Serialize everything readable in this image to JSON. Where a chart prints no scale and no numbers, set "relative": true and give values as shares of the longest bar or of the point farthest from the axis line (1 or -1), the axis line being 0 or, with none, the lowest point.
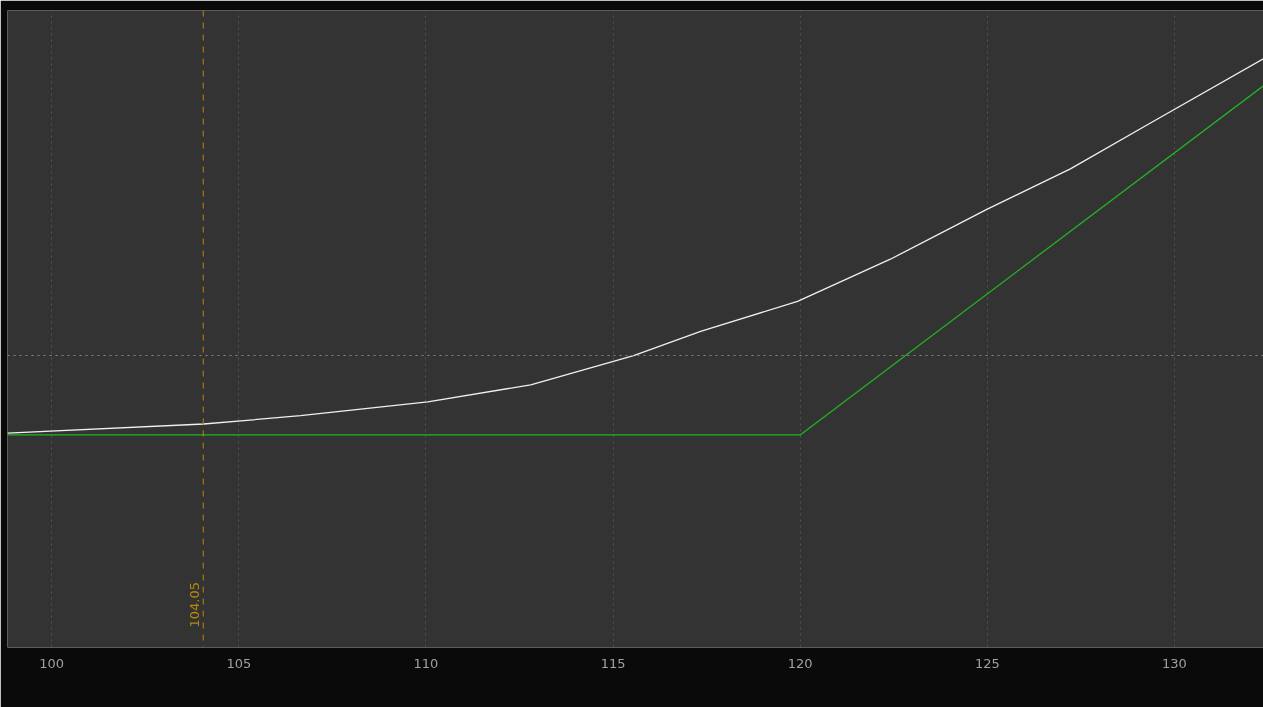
{
  "chart_data": {
    "type": "line",
    "relative": true,
    "xlim": [
      98.82,
      132.38
    ],
    "xticks": [
      100,
      105,
      110,
      115,
      120,
      125,
      130
    ],
    "grid": "x",
    "series": [
      {
        "color": "#f0f0f0",
        "x": [
          98.82,
          104.06,
          106.65,
          110.05,
          112.8,
          115.55,
          117.34,
          119.93,
          122.41,
          125.0,
          127.22,
          129.36,
          132.38
        ],
        "values": [
          0.005,
          0.029,
          0.051,
          0.088,
          0.133,
          0.211,
          0.275,
          0.355,
          0.467,
          0.6,
          0.707,
          0.829,
          1.0
        ]
      },
      {
        "color": "#22b422",
        "x": [
          98.82,
          120.0,
          132.38
        ],
        "values": [
          0,
          0,
          0.928
        ]
      }
    ],
    "ref_lines": [
      {
        "axis": "x",
        "value": 104.05,
        "label": "104.05",
        "color": "#b8860b",
        "line_style": "dashed"
      },
      {
        "axis": "y",
        "value": 0.211,
        "label": null,
        "color": "#8a8a8a",
        "line_style": "dotted"
      }
    ]
  }
}
